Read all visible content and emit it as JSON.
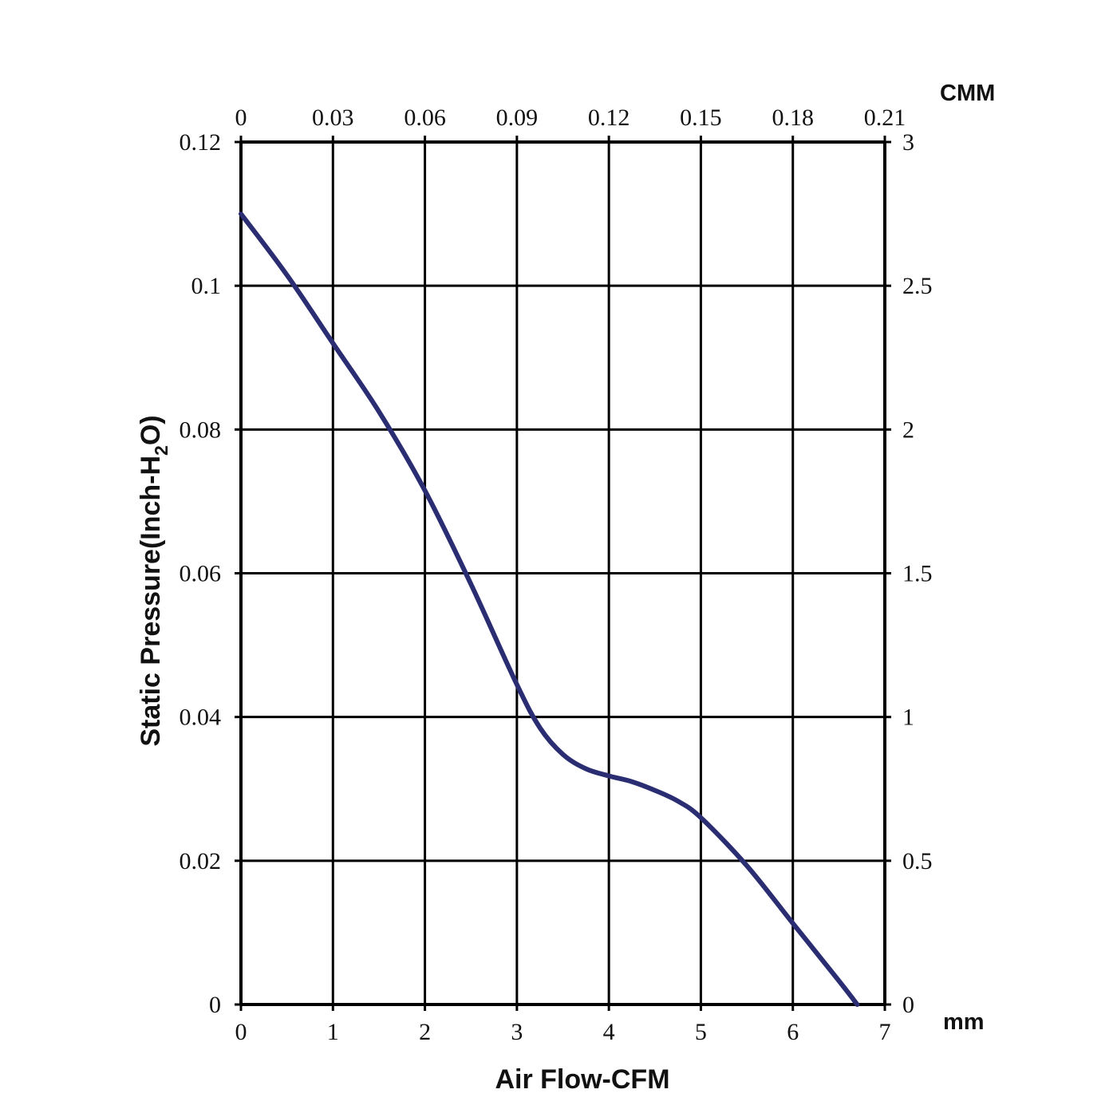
{
  "chart_data": {
    "type": "line",
    "xlabel": "Air Flow-CFM",
    "ylabel_main": "Static Pressure(Inch-H",
    "ylabel_sub": "2",
    "ylabel_end": "O)",
    "top_axis_unit": "CMM",
    "right_axis_unit": "mm",
    "xlim": [
      0,
      7
    ],
    "ylim": [
      0,
      0.12
    ],
    "grid": true,
    "line_color": "#2b2d72",
    "x_ticks": [
      "0",
      "1",
      "2",
      "3",
      "4",
      "5",
      "6",
      "7"
    ],
    "y_ticks": [
      "0",
      "0.02",
      "0.04",
      "0.06",
      "0.08",
      "0.1",
      "0.12"
    ],
    "top_ticks": [
      "0",
      "0.03",
      "0.06",
      "0.09",
      "0.12",
      "0.15",
      "0.18",
      "0.21"
    ],
    "right_ticks": [
      "0",
      "0.5",
      "1",
      "1.5",
      "2",
      "2.5",
      "3"
    ],
    "series": [
      {
        "x": [
          0,
          0.5,
          1.0,
          1.5,
          2.0,
          2.5,
          3.0,
          3.25,
          3.5,
          3.75,
          4.0,
          4.25,
          4.5,
          4.75,
          5.0,
          5.5,
          6.0,
          6.5,
          6.7
        ],
        "y": [
          0.11,
          0.1015,
          0.092,
          0.0825,
          0.0715,
          0.0585,
          0.0445,
          0.0385,
          0.0348,
          0.0328,
          0.0318,
          0.031,
          0.0298,
          0.0283,
          0.026,
          0.0193,
          0.0113,
          0.0033,
          0.0
        ]
      }
    ]
  }
}
